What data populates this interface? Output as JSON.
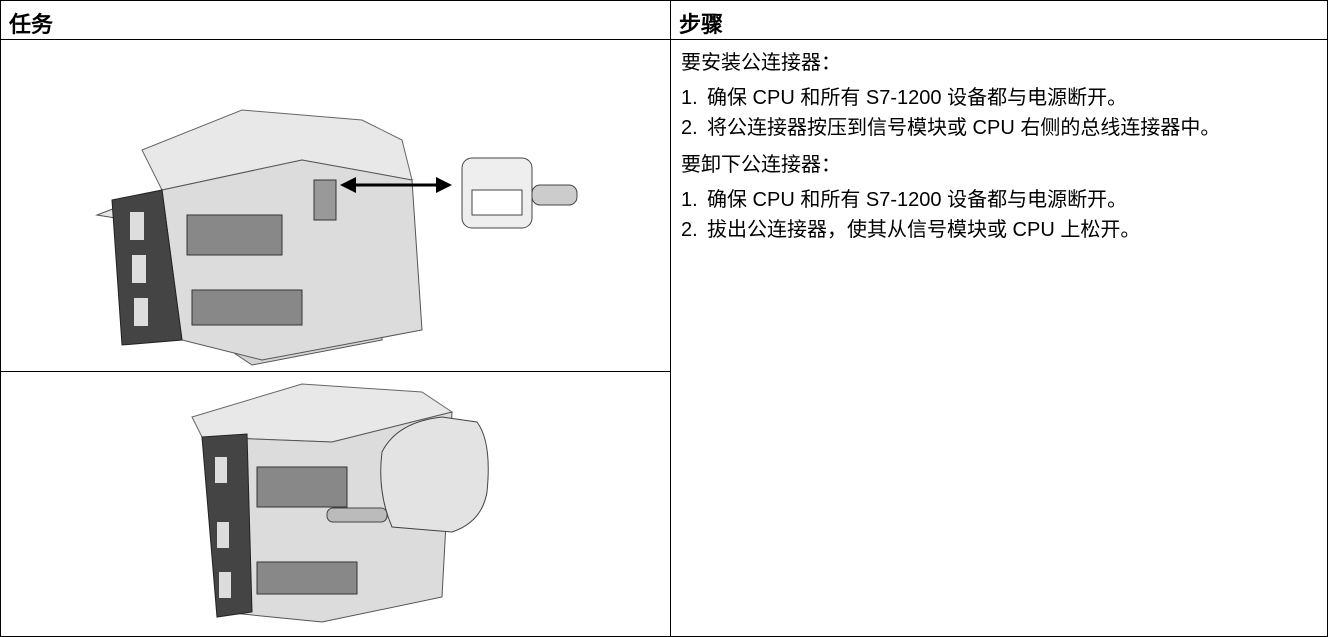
{
  "table": {
    "header": [
      "任务",
      "步骤"
    ],
    "install_title": "要安装公连接器：",
    "install_steps": [
      {
        "num": "1.",
        "text": "确保 CPU 和所有 S7-1200 设备都与电源断开。"
      },
      {
        "num": "2.",
        "text": "将公连接器按压到信号模块或 CPU 右侧的总线连接器中。"
      }
    ],
    "remove_title": "要卸下公连接器：",
    "remove_steps": [
      {
        "num": "1.",
        "text": "确保 CPU 和所有 S7-1200 设备都与电源断开。"
      },
      {
        "num": "2.",
        "text": "拔出公连接器，使其从信号模块或 CPU 上松开。"
      }
    ]
  }
}
